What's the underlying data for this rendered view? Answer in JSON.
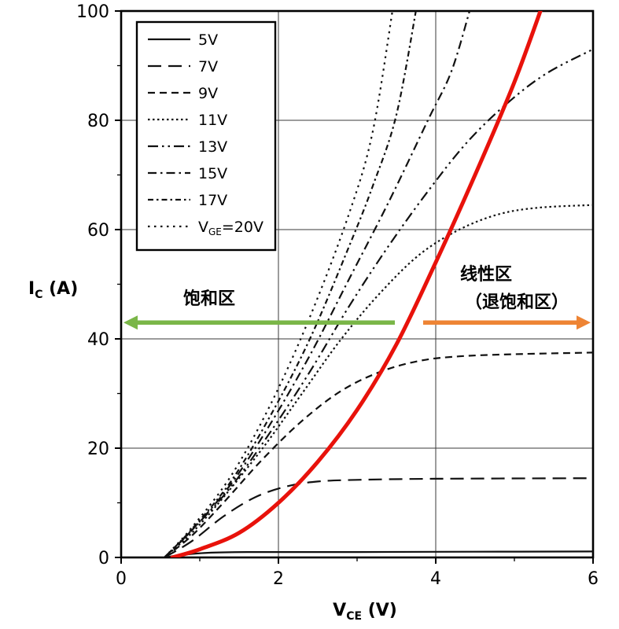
{
  "chart_data": {
    "type": "line",
    "xlabel": {
      "main": "V",
      "sub": "CE",
      "unit": " (V)"
    },
    "ylabel": {
      "main": "I",
      "sub": "C",
      "unit": " (A)"
    },
    "xlim": [
      0,
      6
    ],
    "ylim": [
      0,
      100
    ],
    "xticks": [
      0,
      2,
      4,
      6
    ],
    "xticks_minor": [
      1,
      3,
      5
    ],
    "yticks": [
      0,
      20,
      40,
      60,
      80,
      100
    ],
    "yticks_minor": [
      10,
      30,
      50,
      70,
      90
    ],
    "grid": true,
    "legend_position": "top-left",
    "curve_color": "#111111",
    "series": [
      {
        "name": "5V",
        "legend_label": "5V",
        "dash": "solid",
        "points": [
          [
            0.55,
            0
          ],
          [
            0.8,
            0.5
          ],
          [
            1.1,
            0.85
          ],
          [
            1.6,
            1.0
          ],
          [
            3,
            1.0
          ],
          [
            4.5,
            1.05
          ],
          [
            6,
            1.1
          ]
        ]
      },
      {
        "name": "7V",
        "legend_label": "7V",
        "dash": "longdash",
        "points": [
          [
            0.55,
            0
          ],
          [
            0.9,
            3
          ],
          [
            1.3,
            7.5
          ],
          [
            1.7,
            11
          ],
          [
            2.1,
            13
          ],
          [
            2.5,
            13.9
          ],
          [
            3,
            14.2
          ],
          [
            4,
            14.4
          ],
          [
            6,
            14.5
          ]
        ]
      },
      {
        "name": "9V",
        "legend_label": "9V",
        "dash": "dash",
        "points": [
          [
            0.55,
            0
          ],
          [
            0.9,
            4
          ],
          [
            1.3,
            10
          ],
          [
            1.8,
            18
          ],
          [
            2.3,
            25
          ],
          [
            2.8,
            30.5
          ],
          [
            3.3,
            34
          ],
          [
            3.8,
            36
          ],
          [
            4.3,
            36.8
          ],
          [
            5,
            37.2
          ],
          [
            6,
            37.5
          ]
        ]
      },
      {
        "name": "11V",
        "legend_label": "11V",
        "dash": "dot",
        "points": [
          [
            0.55,
            0
          ],
          [
            0.9,
            4.5
          ],
          [
            1.3,
            11
          ],
          [
            1.8,
            20
          ],
          [
            2.3,
            30
          ],
          [
            2.8,
            40
          ],
          [
            3.3,
            48.5
          ],
          [
            3.8,
            55.5
          ],
          [
            4.3,
            60
          ],
          [
            4.8,
            62.8
          ],
          [
            5.3,
            64
          ],
          [
            6,
            64.5
          ]
        ]
      },
      {
        "name": "13V",
        "legend_label": "13V",
        "dash": "dashdotdot",
        "points": [
          [
            0.55,
            0
          ],
          [
            0.9,
            5
          ],
          [
            1.4,
            13
          ],
          [
            1.9,
            23
          ],
          [
            2.4,
            34
          ],
          [
            2.9,
            46
          ],
          [
            3.4,
            57
          ],
          [
            3.9,
            67
          ],
          [
            4.4,
            76
          ],
          [
            4.9,
            83
          ],
          [
            5.4,
            88.5
          ],
          [
            6,
            93
          ]
        ]
      },
      {
        "name": "15V",
        "legend_label": "15V",
        "dash": "dashdot",
        "points": [
          [
            0.55,
            0
          ],
          [
            0.9,
            5
          ],
          [
            1.4,
            13.5
          ],
          [
            1.9,
            24.5
          ],
          [
            2.4,
            37
          ],
          [
            2.9,
            51
          ],
          [
            3.4,
            65
          ],
          [
            3.9,
            80
          ],
          [
            4.2,
            89
          ],
          [
            4.45,
            101
          ]
        ]
      },
      {
        "name": "17V",
        "legend_label": "17V",
        "dash": "dashdotshort",
        "points": [
          [
            0.55,
            0
          ],
          [
            0.9,
            5.2
          ],
          [
            1.4,
            14
          ],
          [
            1.9,
            26
          ],
          [
            2.4,
            40
          ],
          [
            2.9,
            57
          ],
          [
            3.2,
            68
          ],
          [
            3.5,
            81
          ],
          [
            3.76,
            101
          ]
        ]
      },
      {
        "name": "20V",
        "legend_pre": "V",
        "legend_sub": "GE",
        "legend_post": "=20V",
        "dash": "sparsedot",
        "points": [
          [
            0.55,
            0
          ],
          [
            0.9,
            5.5
          ],
          [
            1.4,
            15
          ],
          [
            1.9,
            28
          ],
          [
            2.4,
            44
          ],
          [
            2.9,
            63
          ],
          [
            3.2,
            78
          ],
          [
            3.46,
            101
          ]
        ]
      }
    ],
    "boundary_curve": {
      "name": "desaturation-boundary",
      "color": "#e8120b",
      "width": 5,
      "points": [
        [
          0.65,
          0
        ],
        [
          1,
          1.5
        ],
        [
          1.5,
          4.5
        ],
        [
          2,
          10
        ],
        [
          2.5,
          17.5
        ],
        [
          3,
          27
        ],
        [
          3.5,
          39
        ],
        [
          4,
          54
        ],
        [
          4.5,
          70
        ],
        [
          5,
          87
        ],
        [
          5.38,
          102
        ]
      ]
    },
    "annotations": {
      "saturation_region": {
        "label": "饱和区",
        "label_pos": [
          1.12,
          46.3
        ],
        "arrow_color": "#7ab648",
        "arrow_y": 43,
        "arrow_from_v": 3.48,
        "arrow_to_v": 0.03,
        "direction": "left"
      },
      "linear_region": {
        "label_line1": "线性区",
        "label1_pos": [
          4.64,
          50.8
        ],
        "label_line2": "（退饱和区）",
        "label2_pos": [
          5.03,
          45.7
        ],
        "arrow_color": "#ee8434",
        "arrow_y": 43,
        "arrow_from_v": 3.84,
        "arrow_to_v": 5.97,
        "direction": "right"
      }
    }
  }
}
